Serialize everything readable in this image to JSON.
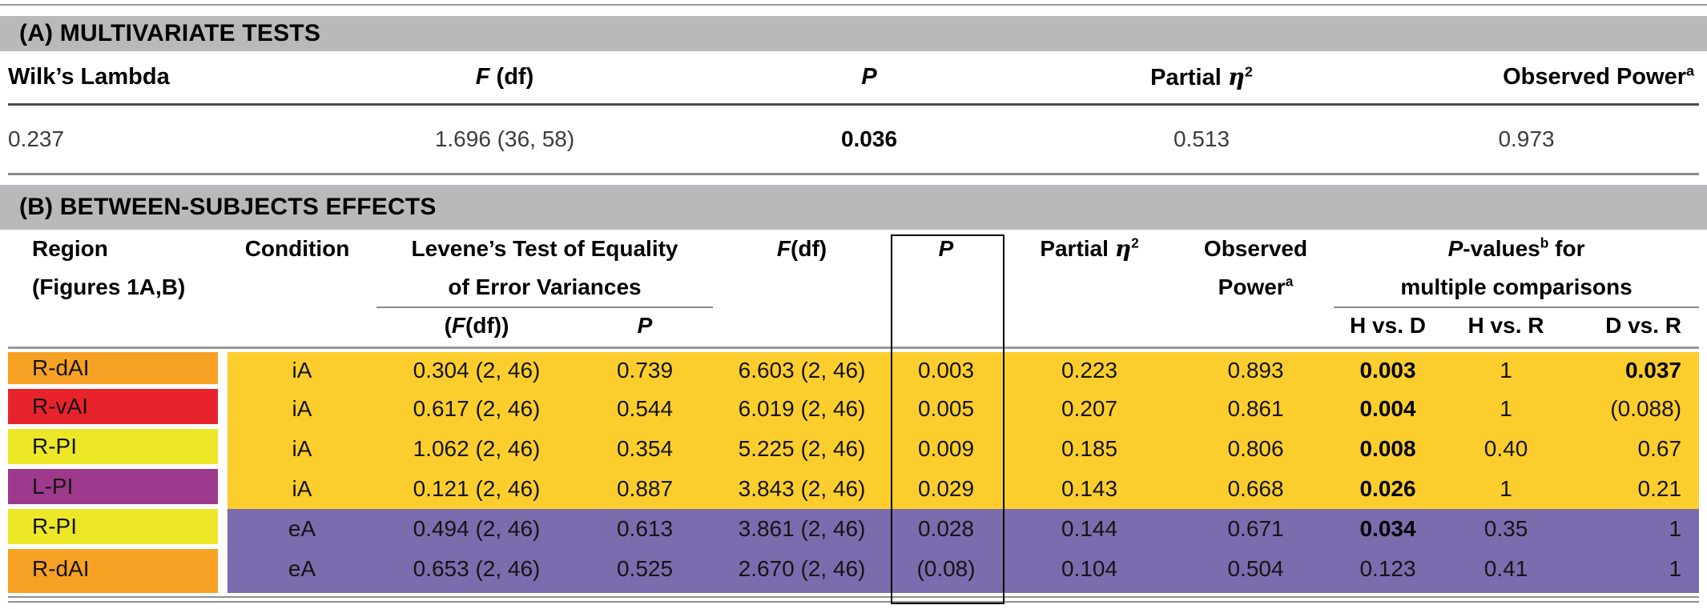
{
  "colors": {
    "title_bar": "#b9b9bb",
    "row_ia": "#fcce2d",
    "row_ea": "#7b6cae",
    "label_orange": "#f6a124",
    "label_red": "#e8232c",
    "label_yellow": "#ece827",
    "label_magenta": "#9d3a8d"
  },
  "section_a": {
    "title": "(A) MULTIVARIATE TESTS",
    "headers": {
      "wilks": "Wilk’s Lambda",
      "f_italic": "F",
      "f_rest": " (df)",
      "p": "P",
      "partial": "Partial ",
      "eta": "η",
      "eta_sup": "2",
      "observed": "Observed Power",
      "observed_sup": "a"
    },
    "row": {
      "wilks": "0.237",
      "f": "1.696 (36, 58)",
      "p": "0.036",
      "eta": "0.513",
      "power": "0.973"
    }
  },
  "section_b": {
    "title": "(B) BETWEEN-SUBJECTS EFFECTS",
    "headers": {
      "region_l1": "Region",
      "region_l2": "(Figures 1A,B)",
      "condition": "Condition",
      "levene_l1": "Levene’s Test of Equality",
      "levene_l2": "of Error Variances",
      "levene_f_open": "(",
      "levene_f_italic": "F",
      "levene_f_rest": "(df))",
      "levene_p": "P",
      "f_italic": "F",
      "f_rest": "(df)",
      "p": "P",
      "partial": "Partial ",
      "eta": "η",
      "eta_sup": "2",
      "observed_l1": "Observed",
      "observed_l2": "Power",
      "observed_sup": "a",
      "pvalues_p": "P",
      "pvalues_mid": "-values",
      "pvalues_sup": "b",
      "pvalues_tail": " for",
      "pvalues_l2": "multiple comparisons",
      "sub_hd": "H vs. D",
      "sub_hr": "H vs. R",
      "sub_dr": "D vs. R"
    },
    "cell_keys": [
      "levene-f",
      "levene-p",
      "f-df",
      "p",
      "partial-eta",
      "observed-power",
      "h-vs-d",
      "h-vs-r",
      "d-vs-r"
    ],
    "rows": [
      {
        "region": "R-dAI",
        "region_color": "orange",
        "condition": "iA",
        "cells": [
          "0.304 (2, 46)",
          "0.739",
          "6.603 (2, 46)",
          "0.003",
          "0.223",
          "0.893",
          "0.003",
          "1",
          "0.037"
        ],
        "bold": [
          6,
          8
        ]
      },
      {
        "region": "R-vAI",
        "region_color": "red",
        "condition": "iA",
        "cells": [
          "0.617 (2, 46)",
          "0.544",
          "6.019 (2, 46)",
          "0.005",
          "0.207",
          "0.861",
          "0.004",
          "1",
          "(0.088)"
        ],
        "bold": [
          6
        ]
      },
      {
        "region": "R-PI",
        "region_color": "yellow",
        "condition": "iA",
        "cells": [
          "1.062 (2, 46)",
          "0.354",
          "5.225 (2, 46)",
          "0.009",
          "0.185",
          "0.806",
          "0.008",
          "0.40",
          "0.67"
        ],
        "bold": [
          6
        ]
      },
      {
        "region": "L-PI",
        "region_color": "magenta",
        "condition": "iA",
        "cells": [
          "0.121 (2, 46)",
          "0.887",
          "3.843 (2, 46)",
          "0.029",
          "0.143",
          "0.668",
          "0.026",
          "1",
          "0.21"
        ],
        "bold": [
          6
        ]
      },
      {
        "region": "R-PI",
        "region_color": "yellow",
        "condition": "eA",
        "cells": [
          "0.494 (2, 46)",
          "0.613",
          "3.861 (2, 46)",
          "0.028",
          "0.144",
          "0.671",
          "0.034",
          "0.35",
          "1"
        ],
        "bold": [
          6
        ]
      },
      {
        "region": "R-dAI",
        "region_color": "orange",
        "condition": "eA",
        "cells": [
          "0.653 (2, 46)",
          "0.525",
          "2.670 (2, 46)",
          "(0.08)",
          "0.104",
          "0.504",
          "0.123",
          "0.41",
          "1"
        ],
        "bold": []
      }
    ]
  }
}
